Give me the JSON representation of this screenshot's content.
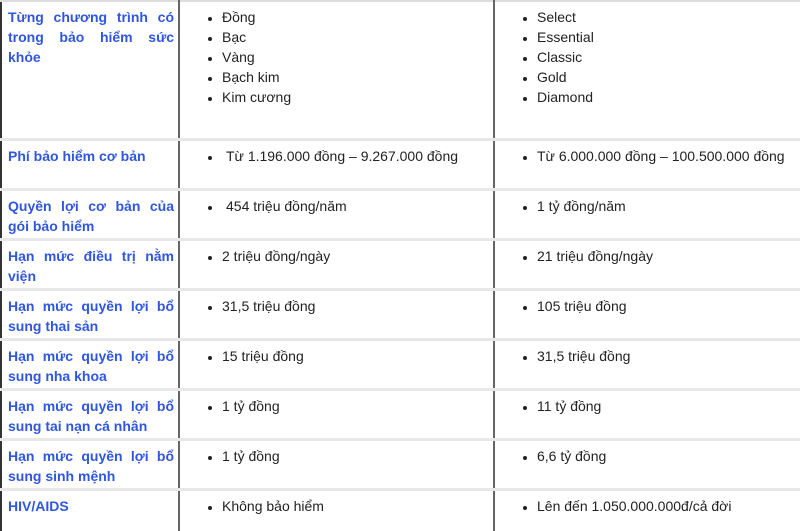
{
  "colors": {
    "label": "#2f56e0",
    "text": "#222222",
    "grid": "#e8e8e8"
  },
  "rows": [
    {
      "label": "Từng chương trình có trong bảo hiểm sức khỏe",
      "col2": [
        "Đồng",
        "Bạc",
        "Vàng",
        "Bạch kim",
        "Kim cương"
      ],
      "col3": [
        "Select",
        "Essential",
        "Classic",
        "Gold",
        "Diamond"
      ]
    },
    {
      "label": "Phí bảo hiểm cơ bản",
      "col2": [
        "Từ 1.196.000 đồng – 9.267.000 đồng"
      ],
      "col3": [
        "Từ 6.000.000 đồng – 100.500.000 đồng"
      ]
    },
    {
      "label": "Quyền lợi cơ bản của gói bảo hiểm",
      "col2": [
        "454 triệu đồng/năm"
      ],
      "col3": [
        "1 tỷ đồng/năm"
      ]
    },
    {
      "label": "Hạn mức điều trị nằm viện",
      "col2": [
        "2 triệu đồng/ngày"
      ],
      "col3": [
        "21 triệu đồng/ngày"
      ]
    },
    {
      "label": "Hạn mức quyền lợi bổ sung thai sản",
      "col2": [
        "31,5 triệu đồng"
      ],
      "col3": [
        "105 triệu đồng"
      ]
    },
    {
      "label": "Hạn mức quyền lợi bổ sung nha khoa",
      "col2": [
        "15 triệu đồng"
      ],
      "col3": [
        "31,5 triệu đồng"
      ]
    },
    {
      "label": "Hạn mức quyền lợi bổ sung tai nạn cá nhân",
      "col2": [
        "1 tỷ đồng"
      ],
      "col3": [
        "11 tỷ đồng"
      ]
    },
    {
      "label": "Hạn mức quyền lợi bổ sung sinh mệnh",
      "col2": [
        "1 tỷ đồng"
      ],
      "col3": [
        "6,6 tỷ đồng"
      ]
    },
    {
      "label": "HIV/AIDS",
      "col2": [
        "Không bảo hiểm"
      ],
      "col3": [
        "Lên đến 1.050.000.000đ/cả đời"
      ]
    }
  ]
}
